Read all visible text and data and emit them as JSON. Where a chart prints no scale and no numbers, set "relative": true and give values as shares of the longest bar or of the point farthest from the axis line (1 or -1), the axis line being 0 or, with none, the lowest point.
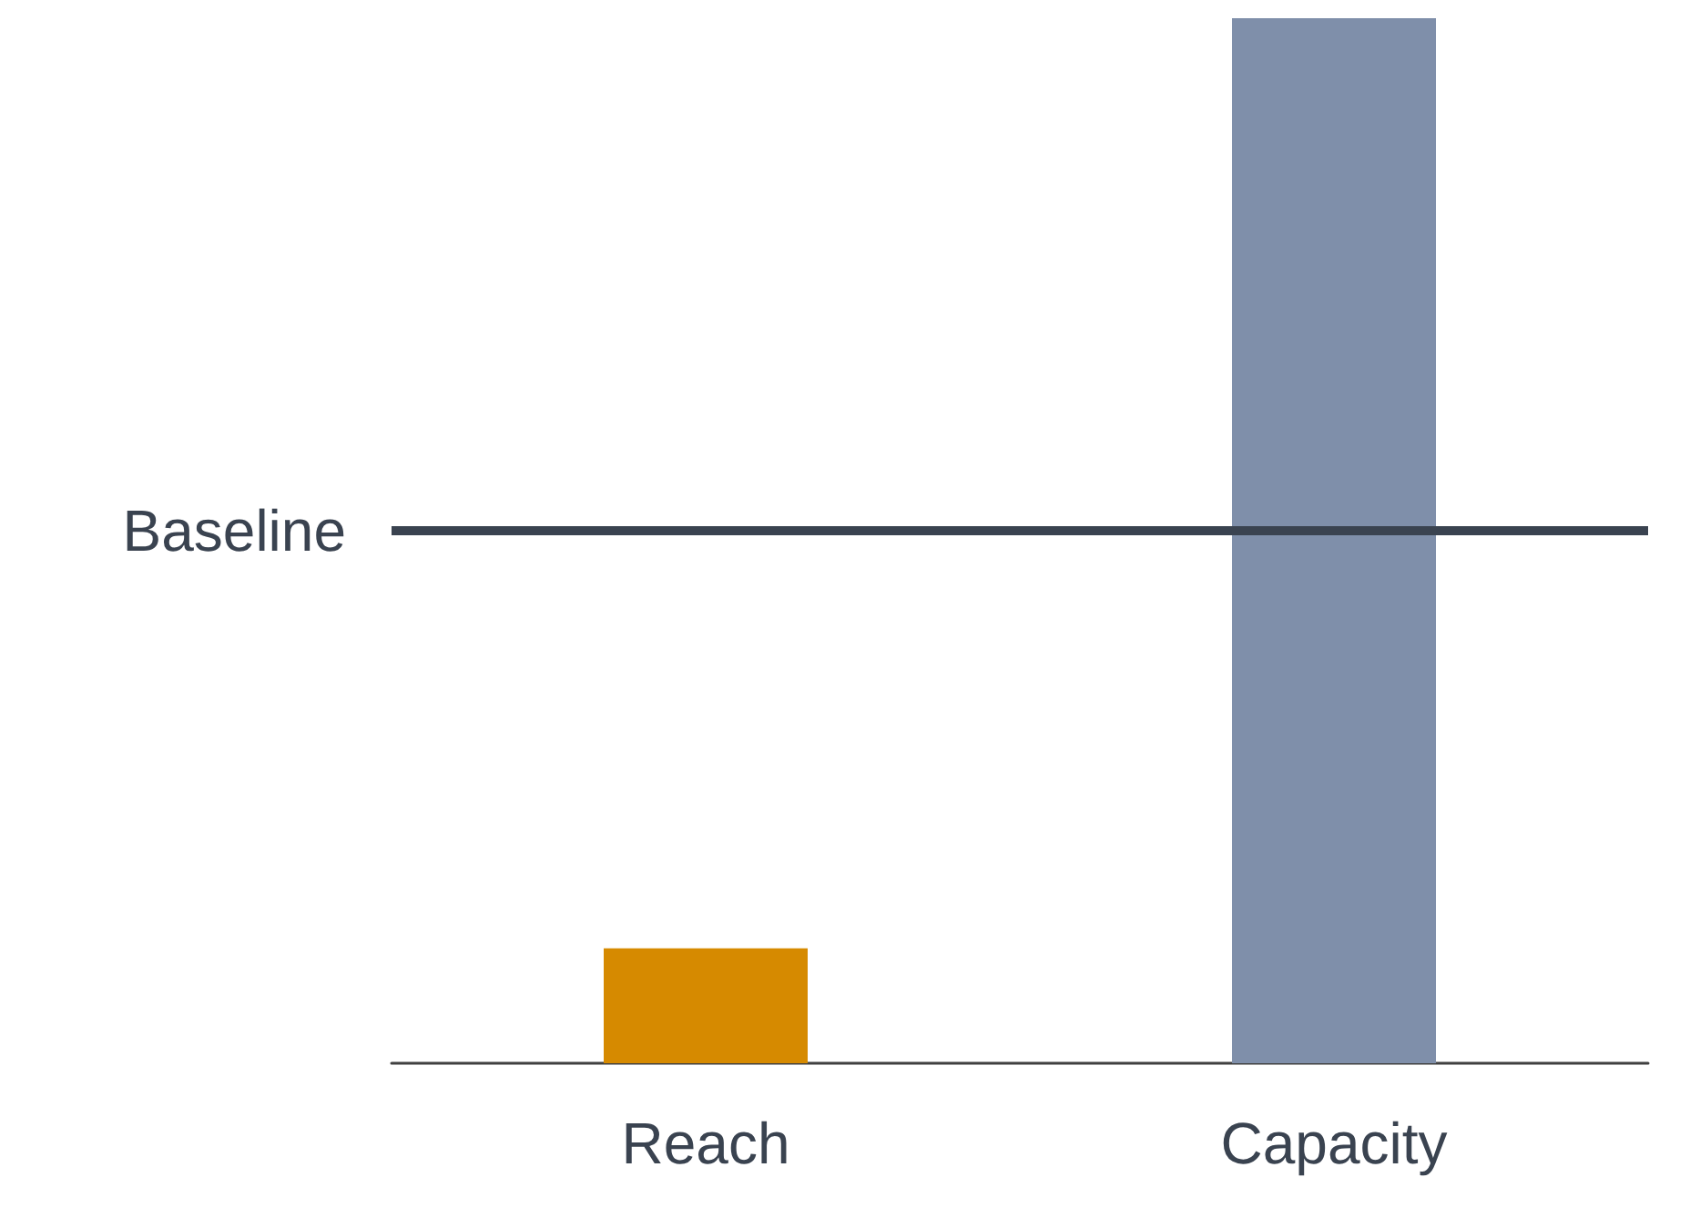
{
  "chart_data": {
    "type": "bar",
    "relative": true,
    "categories": [
      "Reach",
      "Capacity"
    ],
    "values": [
      0.11,
      1
    ],
    "colors": [
      "#d68a00",
      "#7f8faa"
    ],
    "ref_lines": [
      {
        "axis": "y",
        "value": 0.51,
        "label": "Baseline",
        "color": "#3a4350"
      }
    ]
  }
}
